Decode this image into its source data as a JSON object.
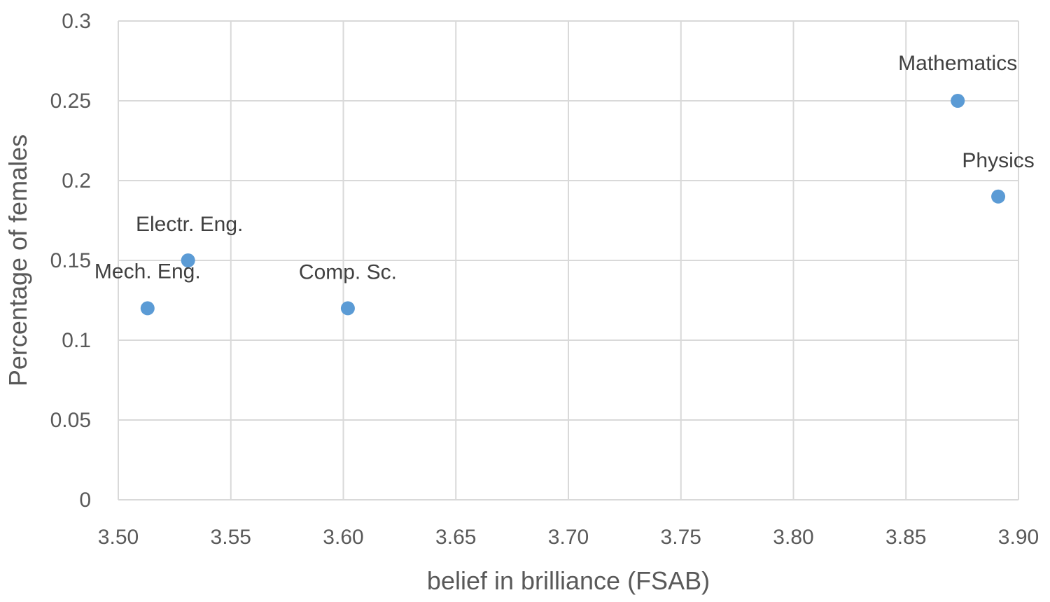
{
  "chart_data": {
    "type": "scatter",
    "xlabel": "belief in brilliance (FSAB)",
    "ylabel": "Percentage of females",
    "xlim": [
      3.5,
      3.9
    ],
    "ylim": [
      0,
      0.3
    ],
    "x_ticks": [
      "3.50",
      "3.55",
      "3.60",
      "3.65",
      "3.70",
      "3.75",
      "3.80",
      "3.85",
      "3.90"
    ],
    "y_ticks": [
      "0",
      "0.05",
      "0.1",
      "0.15",
      "0.2",
      "0.25",
      "0.3"
    ],
    "grid": true,
    "legend": "none",
    "marker_color": "#5b9bd5",
    "points": [
      {
        "label": "Mech. Eng.",
        "x": 3.513,
        "y": 0.12
      },
      {
        "label": "Electr. Eng.",
        "x": 3.531,
        "y": 0.15
      },
      {
        "label": "Comp. Sc.",
        "x": 3.602,
        "y": 0.12
      },
      {
        "label": "Mathematics",
        "x": 3.873,
        "y": 0.25
      },
      {
        "label": "Physics",
        "x": 3.891,
        "y": 0.19
      }
    ]
  }
}
